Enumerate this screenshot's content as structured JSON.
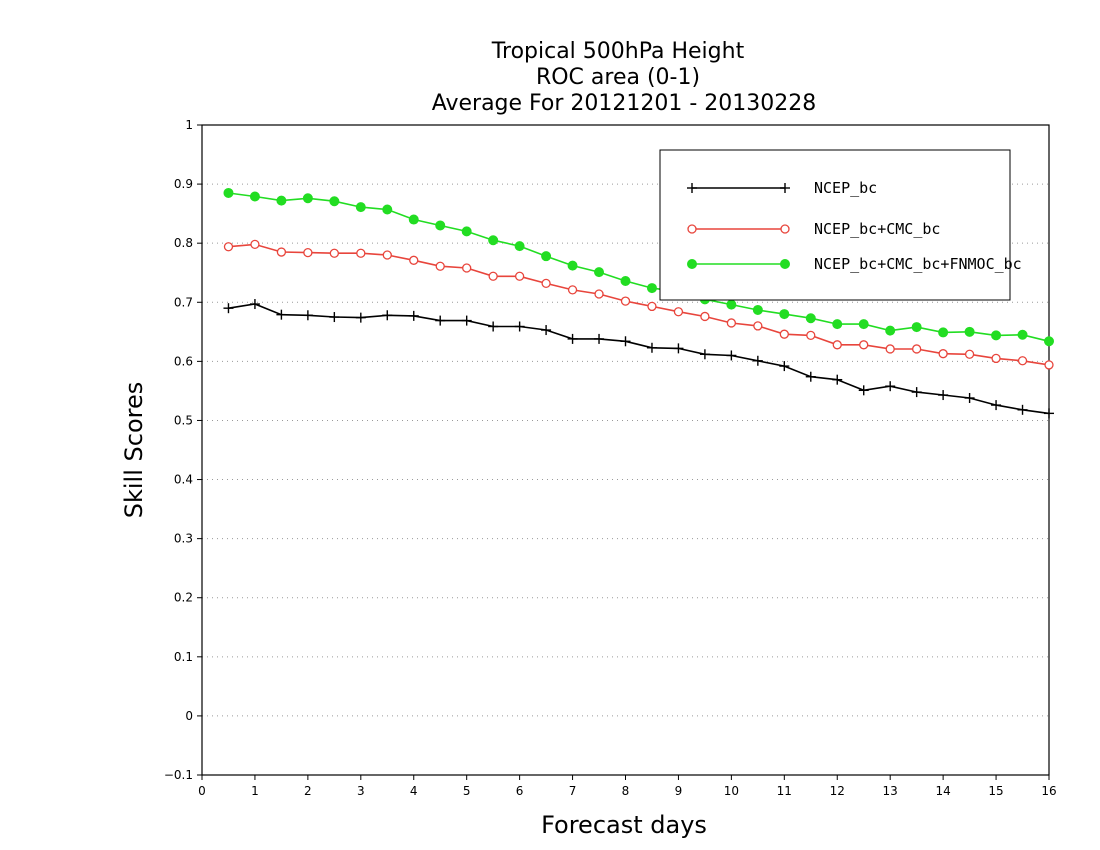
{
  "chart_data": {
    "type": "line",
    "title_lines": [
      "Tropical 500hPa Height",
      "ROC area (0-1)",
      "Average For 20121201 - 20130228"
    ],
    "xlabel": "Forecast days",
    "ylabel": "Skill Scores",
    "xlim": [
      0,
      16
    ],
    "ylim": [
      -0.1,
      1
    ],
    "x_ticks": [
      "0",
      "1",
      "2",
      "3",
      "4",
      "5",
      "6",
      "7",
      "8",
      "9",
      "10",
      "11",
      "12",
      "13",
      "14",
      "15",
      "16"
    ],
    "y_ticks": [
      "−0.1",
      "0",
      "0.1",
      "0.2",
      "0.3",
      "0.4",
      "0.5",
      "0.6",
      "0.7",
      "0.8",
      "0.9",
      "1"
    ],
    "grid": "horizontal dotted",
    "legend_position": "top-right",
    "x": [
      0.5,
      1,
      1.5,
      2,
      2.5,
      3,
      3.5,
      4,
      4.5,
      5,
      5.5,
      6,
      6.5,
      7,
      7.5,
      8,
      8.5,
      9,
      9.5,
      10,
      10.5,
      11,
      11.5,
      12,
      12.5,
      13,
      13.5,
      14,
      14.5,
      15,
      15.5,
      16
    ],
    "series": [
      {
        "name": "NCEP_bc",
        "color": "#000000",
        "marker": "plus",
        "values": [
          0.69,
          0.697,
          0.679,
          0.678,
          0.675,
          0.674,
          0.678,
          0.677,
          0.669,
          0.669,
          0.659,
          0.659,
          0.653,
          0.638,
          0.638,
          0.634,
          0.623,
          0.622,
          0.612,
          0.61,
          0.601,
          0.592,
          0.574,
          0.569,
          0.551,
          0.558,
          0.548,
          0.543,
          0.538,
          0.526,
          0.518,
          0.512
        ]
      },
      {
        "name": "NCEP_bc+CMC_bc",
        "color": "#e8453c",
        "marker": "open-circle",
        "values": [
          0.794,
          0.798,
          0.785,
          0.784,
          0.783,
          0.783,
          0.78,
          0.771,
          0.761,
          0.758,
          0.744,
          0.744,
          0.732,
          0.721,
          0.714,
          0.702,
          0.693,
          0.684,
          0.676,
          0.665,
          0.66,
          0.646,
          0.644,
          0.628,
          0.628,
          0.621,
          0.621,
          0.613,
          0.612,
          0.605,
          0.601,
          0.594
        ]
      },
      {
        "name": "NCEP_bc+CMC_bc+FNMOC_bc",
        "color": "#22dd22",
        "marker": "filled-circle",
        "values": [
          0.885,
          0.879,
          0.872,
          0.876,
          0.871,
          0.861,
          0.857,
          0.84,
          0.83,
          0.82,
          0.805,
          0.795,
          0.778,
          0.762,
          0.751,
          0.736,
          0.724,
          0.718,
          0.705,
          0.696,
          0.687,
          0.68,
          0.673,
          0.663,
          0.663,
          0.652,
          0.658,
          0.649,
          0.65,
          0.644,
          0.645,
          0.634
        ]
      }
    ]
  }
}
